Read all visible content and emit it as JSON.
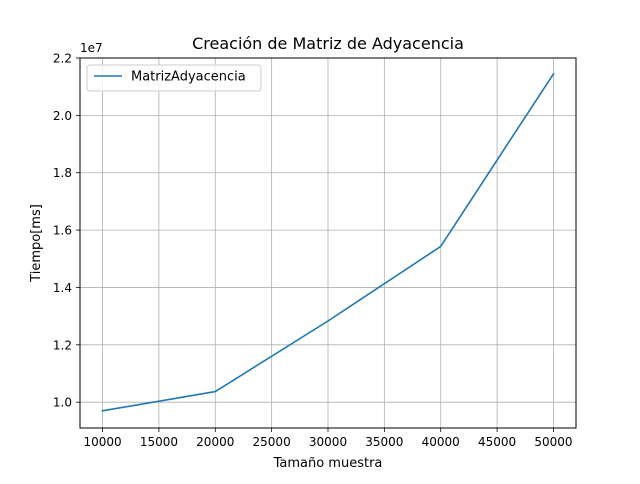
{
  "chart_data": {
    "type": "line",
    "title": "Creación de Matriz de Adyacencia",
    "xlabel": "Tamaño muestra",
    "ylabel": "Tiempo[ms]",
    "y_offset_label": "1e7",
    "x_ticks": [
      10000,
      15000,
      20000,
      25000,
      30000,
      35000,
      40000,
      45000,
      50000
    ],
    "y_ticks": [
      1.0,
      1.2,
      1.4,
      1.6,
      1.8,
      2.0,
      2.2
    ],
    "y_tick_labels": [
      "1.0",
      "1.2",
      "1.4",
      "1.6",
      "1.8",
      "2.0",
      "2.2"
    ],
    "xlim": [
      8000,
      52000
    ],
    "ylim": [
      0.91,
      2.2
    ],
    "grid": true,
    "legend_position": "upper-left",
    "series": [
      {
        "name": "MatrizAdyacencia",
        "color": "#1f77b4",
        "x": [
          10000,
          20000,
          30000,
          40000,
          50000
        ],
        "y": [
          0.97,
          1.037,
          1.283,
          1.543,
          2.145
        ]
      }
    ]
  }
}
